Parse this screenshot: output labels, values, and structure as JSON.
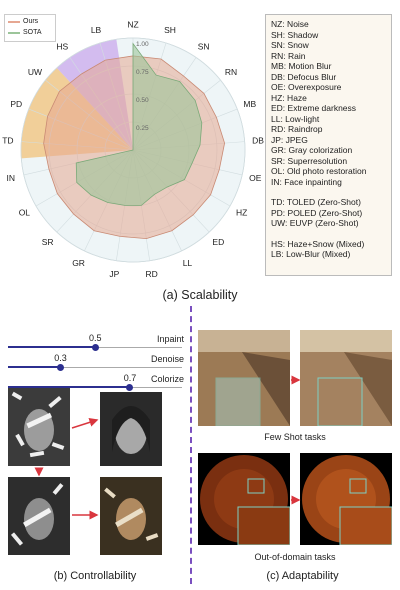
{
  "chart_data": {
    "type": "radar",
    "axes": [
      "NZ",
      "SH",
      "SN",
      "RN",
      "MB",
      "DB",
      "OE",
      "HZ",
      "ED",
      "LL",
      "RD",
      "JP",
      "GR",
      "SR",
      "OL",
      "IN",
      "TD",
      "PD",
      "UW",
      "HS",
      "LB"
    ],
    "rlim": [
      0,
      1
    ],
    "ticks": [
      "0.25",
      "0.50",
      "0.75",
      "1.00"
    ],
    "tick_values": [
      0.25,
      0.5,
      0.75,
      1.0
    ],
    "series": [
      {
        "name": "Ours",
        "color": "#e6a792",
        "values": [
          0.84,
          0.85,
          0.8,
          0.81,
          0.8,
          0.82,
          0.79,
          0.8,
          0.79,
          0.8,
          0.8,
          0.78,
          0.8,
          0.78,
          0.78,
          0.77,
          0.8,
          0.82,
          0.84,
          0.82,
          0.84
        ]
      },
      {
        "name": "SOTA",
        "color": "#9cc59a",
        "values": [
          0.95,
          0.7,
          0.74,
          0.71,
          0.66,
          0.6,
          0.54,
          0.53,
          0.45,
          0.44,
          0.5,
          0.5,
          0.52,
          0.55,
          0.58,
          0.52,
          0,
          0,
          0,
          0,
          0
        ]
      }
    ],
    "sector_highlights": [
      {
        "axes": [
          "TD",
          "PD",
          "UW"
        ],
        "color": "#f2c279"
      },
      {
        "axes": [
          "HS",
          "LB"
        ],
        "color": "#c9a8ec"
      }
    ]
  },
  "legend": {
    "ours": "Ours",
    "sota": "SOTA"
  },
  "abbreviations": {
    "single": [
      "NZ: Noise",
      "SH: Shadow",
      "SN: Snow",
      "RN: Rain",
      "MB: Motion Blur",
      "DB: Defocus Blur",
      "OE: Overexposure",
      "HZ: Haze",
      "ED: Extreme darkness",
      "LL: Low-light",
      "RD: Raindrop",
      "JP: JPEG",
      "GR: Gray colorization",
      "SR: Superresolution",
      "OL: Old photo restoration",
      "IN: Face inpainting"
    ],
    "zero_shot": [
      "TD: TOLED (Zero-Shot)",
      "PD: POLED (Zero-Shot)",
      "UW: EUVP (Zero-Shot)"
    ],
    "mixed": [
      "HS: Haze+Snow (Mixed)",
      "LB: Low-Blur (Mixed)"
    ]
  },
  "captions": {
    "scalability": "(a) Scalability",
    "controllability": "(b) Controllability",
    "adaptability": "(c) Adaptability",
    "few_shot": "Few Shot tasks",
    "out_of_domain": "Out-of-domain tasks"
  },
  "sliders": [
    {
      "name": "Inpaint",
      "value": 0.5,
      "value_text": "0.5"
    },
    {
      "name": "Denoise",
      "value": 0.3,
      "value_text": "0.3"
    },
    {
      "name": "Colorize",
      "value": 0.7,
      "value_text": "0.7"
    }
  ],
  "colors": {
    "slider": "#2c2f8f",
    "arrow": "#d9363e",
    "divider": "#7a4fbf",
    "inset_border": "#7ed0c4"
  }
}
